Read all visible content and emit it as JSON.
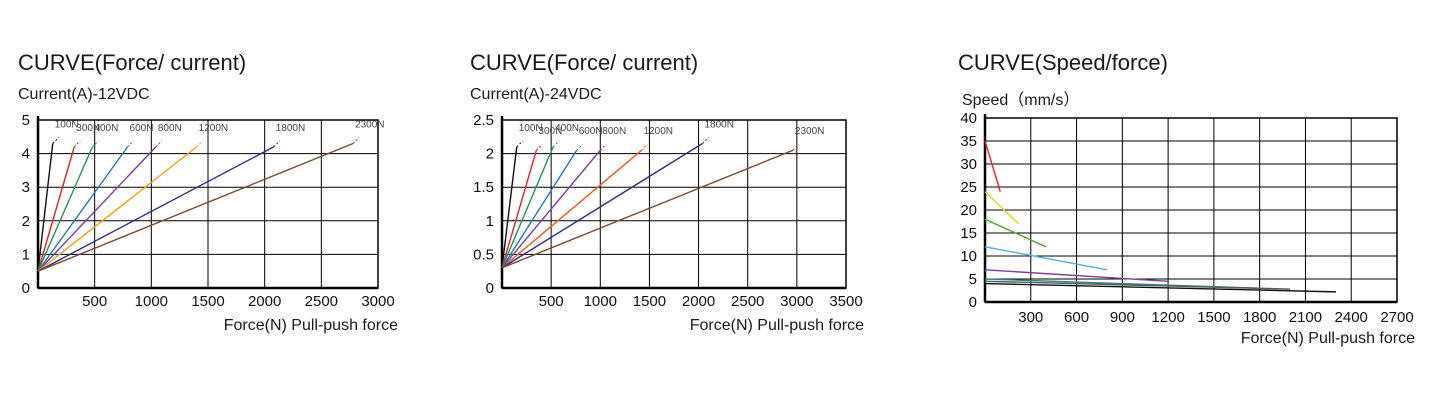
{
  "chart_data": [
    {
      "type": "line",
      "title": "CURVE(Force/ current)",
      "ylabel": "Current(A)-12VDC",
      "xlabel": "Force(N) Pull-push force",
      "xlim": [
        0,
        3000
      ],
      "ylim": [
        0,
        5
      ],
      "xticks": [
        "500",
        "1000",
        "1500",
        "2000",
        "2500",
        "3000"
      ],
      "yticks": [
        "0",
        "1",
        "2",
        "3",
        "4",
        "5"
      ],
      "grid": true,
      "series": [
        {
          "name": "100N",
          "color": "#111111",
          "points": [
            [
              0,
              0.5
            ],
            [
              130,
              4.3
            ]
          ]
        },
        {
          "name": "300N",
          "color": "#e8202a",
          "points": [
            [
              0,
              0.5
            ],
            [
              320,
              4.2
            ]
          ]
        },
        {
          "name": "400N",
          "color": "#1a9850",
          "points": [
            [
              0,
              0.5
            ],
            [
              480,
              4.2
            ]
          ]
        },
        {
          "name": "600N",
          "color": "#1f78b4",
          "points": [
            [
              0,
              0.5
            ],
            [
              790,
              4.2
            ]
          ]
        },
        {
          "name": "800N",
          "color": "#7b3fa0",
          "points": [
            [
              0,
              0.5
            ],
            [
              1040,
              4.2
            ]
          ]
        },
        {
          "name": "1200N",
          "color": "#f4a300",
          "points": [
            [
              0,
              0.5
            ],
            [
              1400,
              4.2
            ]
          ]
        },
        {
          "name": "1800N",
          "color": "#2b2f8c",
          "points": [
            [
              0,
              0.5
            ],
            [
              2080,
              4.2
            ]
          ]
        },
        {
          "name": "2300N",
          "color": "#7a4a2a",
          "points": [
            [
              0,
              0.5
            ],
            [
              2780,
              4.3
            ]
          ]
        }
      ]
    },
    {
      "type": "line",
      "title": "CURVE(Force/ current)",
      "ylabel": "Current(A)-24VDC",
      "xlabel": "Force(N) Pull-push force",
      "xlim": [
        0,
        3500
      ],
      "ylim": [
        0,
        2.5
      ],
      "xticks": [
        "500",
        "1000",
        "1500",
        "2000",
        "2500",
        "3000",
        "3500"
      ],
      "yticks": [
        "0",
        "0.5",
        "1",
        "1.5",
        "2",
        "2.5"
      ],
      "grid": true,
      "series": [
        {
          "name": "100N",
          "color": "#111111",
          "points": [
            [
              0,
              0.3
            ],
            [
              150,
              2.1
            ]
          ]
        },
        {
          "name": "300N",
          "color": "#e8202a",
          "points": [
            [
              0,
              0.3
            ],
            [
              350,
              2.05
            ]
          ]
        },
        {
          "name": "400N",
          "color": "#1a9850",
          "points": [
            [
              0,
              0.3
            ],
            [
              520,
              2.1
            ]
          ]
        },
        {
          "name": "600N",
          "color": "#1f78b4",
          "points": [
            [
              0,
              0.3
            ],
            [
              760,
              2.05
            ]
          ]
        },
        {
          "name": "800N",
          "color": "#7b3fa0",
          "points": [
            [
              0,
              0.3
            ],
            [
              1000,
              2.05
            ]
          ]
        },
        {
          "name": "1200N",
          "color": "#f05a1a",
          "points": [
            [
              0,
              0.3
            ],
            [
              1420,
              2.05
            ]
          ]
        },
        {
          "name": "1800N",
          "color": "#2b2f8c",
          "points": [
            [
              0,
              0.3
            ],
            [
              2040,
              2.15
            ]
          ]
        },
        {
          "name": "2300N",
          "color": "#7a4a2a",
          "points": [
            [
              0,
              0.3
            ],
            [
              2960,
              2.05
            ]
          ]
        }
      ]
    },
    {
      "type": "line",
      "title": "CURVE(Speed/force)",
      "ylabel": "Speed（mm/s）",
      "xlabel": "Force(N) Pull-push force",
      "xlim": [
        0,
        2700
      ],
      "ylim": [
        0,
        40
      ],
      "xticks": [
        "300",
        "600",
        "900",
        "1200",
        "1500",
        "1800",
        "2100",
        "2400",
        "2700"
      ],
      "yticks": [
        "0",
        "5",
        "10",
        "15",
        "20",
        "25",
        "30",
        "35",
        "40"
      ],
      "grid": true,
      "series": [
        {
          "color": "#e8202a",
          "points": [
            [
              0,
              35
            ],
            [
              100,
              24
            ]
          ]
        },
        {
          "color": "#e6d21a",
          "points": [
            [
              0,
              24
            ],
            [
              220,
              17
            ]
          ]
        },
        {
          "color": "#58a63a",
          "points": [
            [
              0,
              18
            ],
            [
              400,
              12
            ]
          ]
        },
        {
          "color": "#4fb3e0",
          "points": [
            [
              0,
              12
            ],
            [
              800,
              7
            ]
          ]
        },
        {
          "color": "#7b3fa0",
          "points": [
            [
              0,
              7
            ],
            [
              1200,
              4.5
            ]
          ]
        },
        {
          "color": "#1a8a8a",
          "points": [
            [
              0,
              5
            ],
            [
              1800,
              3
            ]
          ]
        },
        {
          "color": "#5a5a5a",
          "points": [
            [
              0,
              4.5
            ],
            [
              2000,
              2.8
            ]
          ]
        },
        {
          "color": "#111111",
          "points": [
            [
              0,
              4
            ],
            [
              2300,
              2.2
            ]
          ]
        }
      ]
    }
  ]
}
